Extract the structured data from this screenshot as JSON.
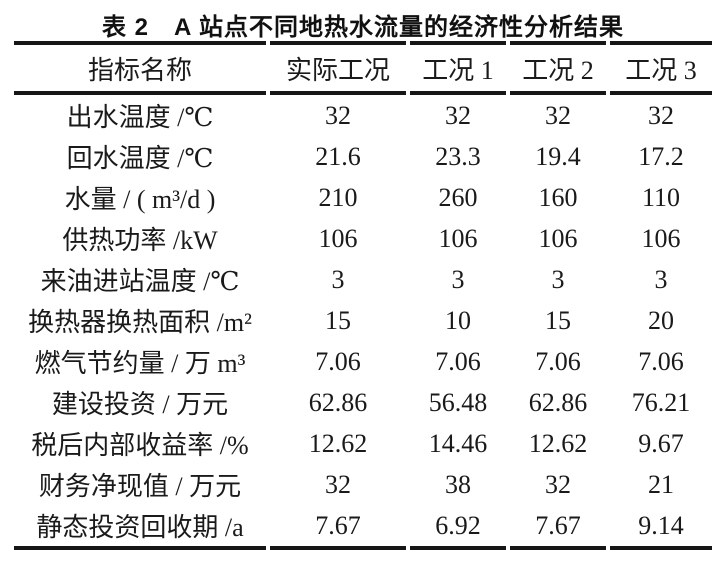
{
  "page": {
    "background": "#ffffff",
    "text_color": "#1a1a1a",
    "rule_color": "#161616"
  },
  "caption": "表 2　A 站点不同地热水流量的经济性分析结果",
  "chart_data": {
    "type": "table",
    "title": "表 2　A 站点不同地热水流量的经济性分析结果",
    "columns": [
      "指标名称",
      "实际工况",
      "工况 1",
      "工况 2",
      "工况 3"
    ],
    "rows": [
      {
        "label": "出水温度 /℃",
        "values": [
          "32",
          "32",
          "32",
          "32"
        ]
      },
      {
        "label": "回水温度 /℃",
        "values": [
          "21.6",
          "23.3",
          "19.4",
          "17.2"
        ]
      },
      {
        "label": "水量 / ( m³/d )",
        "values": [
          "210",
          "260",
          "160",
          "110"
        ]
      },
      {
        "label": "供热功率 /kW",
        "values": [
          "106",
          "106",
          "106",
          "106"
        ]
      },
      {
        "label": "来油进站温度 /℃",
        "values": [
          "3",
          "3",
          "3",
          "3"
        ]
      },
      {
        "label": "换热器换热面积 /m²",
        "values": [
          "15",
          "10",
          "15",
          "20"
        ]
      },
      {
        "label": "燃气节约量 / 万 m³",
        "values": [
          "7.06",
          "7.06",
          "7.06",
          "7.06"
        ]
      },
      {
        "label": "建设投资 / 万元",
        "values": [
          "62.86",
          "56.48",
          "62.86",
          "76.21"
        ]
      },
      {
        "label": "税后内部收益率 /%",
        "values": [
          "12.62",
          "14.46",
          "12.62",
          "9.67"
        ]
      },
      {
        "label": "财务净现值 / 万元",
        "values": [
          "32",
          "38",
          "32",
          "21"
        ]
      },
      {
        "label": "静态投资回收期 /a",
        "values": [
          "7.67",
          "6.92",
          "7.67",
          "9.14"
        ]
      }
    ]
  }
}
